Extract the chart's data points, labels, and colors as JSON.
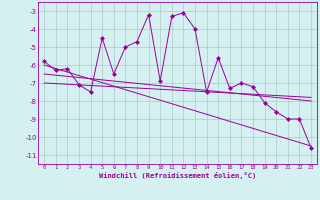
{
  "x": [
    0,
    1,
    2,
    3,
    4,
    5,
    6,
    7,
    8,
    9,
    10,
    11,
    12,
    13,
    14,
    15,
    16,
    17,
    18,
    19,
    20,
    21,
    22,
    23
  ],
  "line1": [
    -5.8,
    -6.3,
    -6.2,
    -7.1,
    -7.5,
    -4.5,
    -6.5,
    -5.0,
    -4.7,
    -3.2,
    -6.9,
    -3.3,
    -3.1,
    -4.0,
    -7.5,
    -5.6,
    -7.3,
    -7.0,
    -7.2,
    -8.1,
    -8.6,
    -9.0,
    -9.0,
    -10.6
  ],
  "trend1_x": [
    0,
    23
  ],
  "trend1_y": [
    -6.5,
    -8.0
  ],
  "trend2_x": [
    0,
    23
  ],
  "trend2_y": [
    -7.0,
    -7.8
  ],
  "trend3_x": [
    0,
    23
  ],
  "trend3_y": [
    -6.0,
    -10.5
  ],
  "line_color": "#990099",
  "bg_color": "#d4f0f0",
  "grid_color": "#b0c8c8",
  "xlabel": "Windchill (Refroidissement éolien,°C)",
  "ylim": [
    -11.5,
    -2.5
  ],
  "xlim": [
    -0.5,
    23.5
  ],
  "yticks": [
    -3,
    -4,
    -5,
    -6,
    -7,
    -8,
    -9,
    -10,
    -11
  ],
  "xticks": [
    0,
    1,
    2,
    3,
    4,
    5,
    6,
    7,
    8,
    9,
    10,
    11,
    12,
    13,
    14,
    15,
    16,
    17,
    18,
    19,
    20,
    21,
    22,
    23
  ]
}
